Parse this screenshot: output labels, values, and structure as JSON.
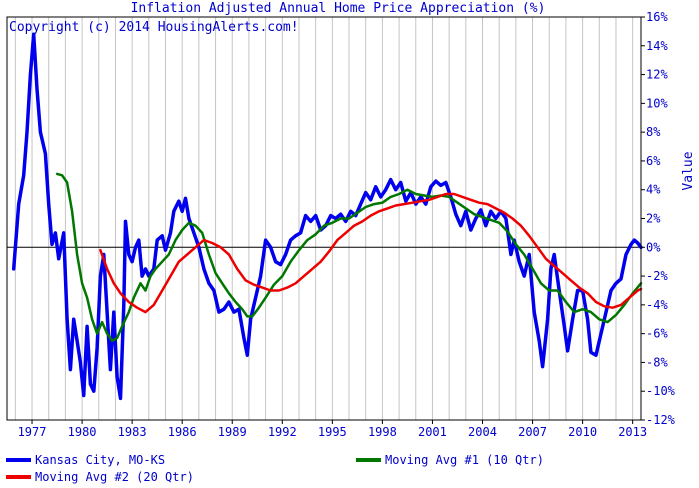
{
  "chart_data": {
    "type": "line",
    "title": "Inflation Adjusted Annual Home Price Appreciation (%)",
    "annotation": "Copyright (c) 2014 HousingAlerts.com!",
    "ylabel": "Value",
    "xlim": [
      1975.5,
      2013.5
    ],
    "ylim": [
      -12,
      16
    ],
    "x_ticks": [
      1977,
      1980,
      1983,
      1986,
      1989,
      1992,
      1995,
      1998,
      2001,
      2004,
      2007,
      2010,
      2013
    ],
    "y_ticks": [
      16,
      14,
      12,
      10,
      8,
      6,
      4,
      2,
      0,
      -2,
      -4,
      -6,
      -8,
      -10,
      -12
    ],
    "y_tick_labels": [
      "16%",
      "14%",
      "12%",
      "10%",
      "8%",
      "6%",
      "4%",
      "2%",
      "0%",
      "-2%",
      "-4%",
      "-6%",
      "-8%",
      "-10%",
      "-12%"
    ],
    "grid": "vertical",
    "legend_position": "bottom",
    "series": [
      {
        "name": "Kansas City, MO-KS",
        "color": "#0000ee",
        "points": [
          [
            1975.9,
            -1.5
          ],
          [
            1976.2,
            3.0
          ],
          [
            1976.5,
            5.0
          ],
          [
            1976.7,
            8.0
          ],
          [
            1976.9,
            12.0
          ],
          [
            1977.1,
            14.8
          ],
          [
            1977.3,
            11.0
          ],
          [
            1977.5,
            8.0
          ],
          [
            1977.8,
            6.5
          ],
          [
            1978.0,
            3.0
          ],
          [
            1978.2,
            0.2
          ],
          [
            1978.4,
            1.0
          ],
          [
            1978.6,
            -0.8
          ],
          [
            1978.9,
            1.0
          ],
          [
            1979.1,
            -5.0
          ],
          [
            1979.3,
            -8.5
          ],
          [
            1979.5,
            -5.0
          ],
          [
            1979.7,
            -6.5
          ],
          [
            1979.9,
            -8.0
          ],
          [
            1980.1,
            -10.3
          ],
          [
            1980.3,
            -5.5
          ],
          [
            1980.5,
            -9.5
          ],
          [
            1980.7,
            -10.0
          ],
          [
            1980.9,
            -7.0
          ],
          [
            1981.1,
            -2.0
          ],
          [
            1981.3,
            -0.5
          ],
          [
            1981.5,
            -4.5
          ],
          [
            1981.7,
            -8.5
          ],
          [
            1981.9,
            -4.5
          ],
          [
            1982.1,
            -9.0
          ],
          [
            1982.3,
            -10.5
          ],
          [
            1982.5,
            -4.0
          ],
          [
            1982.6,
            1.8
          ],
          [
            1982.8,
            -0.5
          ],
          [
            1983.0,
            -1.0
          ],
          [
            1983.2,
            0.0
          ],
          [
            1983.4,
            0.5
          ],
          [
            1983.6,
            -2.0
          ],
          [
            1983.8,
            -1.5
          ],
          [
            1984.0,
            -2.0
          ],
          [
            1984.3,
            -1.5
          ],
          [
            1984.5,
            0.5
          ],
          [
            1984.8,
            0.8
          ],
          [
            1985.0,
            -0.2
          ],
          [
            1985.3,
            1.0
          ],
          [
            1985.5,
            2.5
          ],
          [
            1985.8,
            3.2
          ],
          [
            1986.0,
            2.5
          ],
          [
            1986.2,
            3.4
          ],
          [
            1986.4,
            2.0
          ],
          [
            1986.7,
            1.0
          ],
          [
            1987.0,
            0.0
          ],
          [
            1987.3,
            -1.5
          ],
          [
            1987.6,
            -2.5
          ],
          [
            1987.9,
            -3.0
          ],
          [
            1988.2,
            -4.5
          ],
          [
            1988.5,
            -4.3
          ],
          [
            1988.8,
            -3.8
          ],
          [
            1989.1,
            -4.5
          ],
          [
            1989.4,
            -4.3
          ],
          [
            1989.7,
            -6.3
          ],
          [
            1989.9,
            -7.5
          ],
          [
            1990.1,
            -5.0
          ],
          [
            1990.4,
            -3.5
          ],
          [
            1990.7,
            -2.0
          ],
          [
            1991.0,
            0.5
          ],
          [
            1991.3,
            0.0
          ],
          [
            1991.6,
            -1.0
          ],
          [
            1991.9,
            -1.2
          ],
          [
            1992.2,
            -0.5
          ],
          [
            1992.5,
            0.5
          ],
          [
            1992.8,
            0.8
          ],
          [
            1993.1,
            1.0
          ],
          [
            1993.4,
            2.2
          ],
          [
            1993.7,
            1.8
          ],
          [
            1994.0,
            2.2
          ],
          [
            1994.3,
            1.2
          ],
          [
            1994.6,
            1.5
          ],
          [
            1994.9,
            2.2
          ],
          [
            1995.2,
            2.0
          ],
          [
            1995.5,
            2.3
          ],
          [
            1995.8,
            1.8
          ],
          [
            1996.1,
            2.5
          ],
          [
            1996.4,
            2.2
          ],
          [
            1996.7,
            3.0
          ],
          [
            1997.0,
            3.8
          ],
          [
            1997.3,
            3.3
          ],
          [
            1997.6,
            4.2
          ],
          [
            1997.9,
            3.5
          ],
          [
            1998.2,
            4.0
          ],
          [
            1998.5,
            4.7
          ],
          [
            1998.8,
            4.0
          ],
          [
            1999.1,
            4.5
          ],
          [
            1999.4,
            3.2
          ],
          [
            1999.7,
            3.8
          ],
          [
            2000.0,
            3.0
          ],
          [
            2000.3,
            3.5
          ],
          [
            2000.6,
            3.0
          ],
          [
            2000.9,
            4.2
          ],
          [
            2001.2,
            4.6
          ],
          [
            2001.5,
            4.3
          ],
          [
            2001.8,
            4.5
          ],
          [
            2002.1,
            3.5
          ],
          [
            2002.4,
            2.3
          ],
          [
            2002.7,
            1.5
          ],
          [
            2003.0,
            2.5
          ],
          [
            2003.3,
            1.2
          ],
          [
            2003.6,
            2.0
          ],
          [
            2003.9,
            2.6
          ],
          [
            2004.2,
            1.5
          ],
          [
            2004.5,
            2.5
          ],
          [
            2004.8,
            2.0
          ],
          [
            2005.1,
            2.5
          ],
          [
            2005.4,
            2.0
          ],
          [
            2005.7,
            -0.5
          ],
          [
            2005.9,
            0.5
          ],
          [
            2006.2,
            -1.0
          ],
          [
            2006.5,
            -2.0
          ],
          [
            2006.8,
            -0.5
          ],
          [
            2007.1,
            -4.5
          ],
          [
            2007.4,
            -6.5
          ],
          [
            2007.6,
            -8.3
          ],
          [
            2007.9,
            -5.0
          ],
          [
            2008.1,
            -1.5
          ],
          [
            2008.3,
            -0.5
          ],
          [
            2008.6,
            -3.0
          ],
          [
            2008.9,
            -5.5
          ],
          [
            2009.1,
            -7.2
          ],
          [
            2009.4,
            -5.0
          ],
          [
            2009.7,
            -3.0
          ],
          [
            2010.0,
            -3.0
          ],
          [
            2010.3,
            -5.0
          ],
          [
            2010.5,
            -7.3
          ],
          [
            2010.8,
            -7.5
          ],
          [
            2011.1,
            -6.0
          ],
          [
            2011.4,
            -4.5
          ],
          [
            2011.7,
            -3.0
          ],
          [
            2012.0,
            -2.5
          ],
          [
            2012.3,
            -2.2
          ],
          [
            2012.6,
            -0.5
          ],
          [
            2012.9,
            0.2
          ],
          [
            2013.1,
            0.5
          ],
          [
            2013.3,
            0.3
          ],
          [
            2013.5,
            0.0
          ]
        ]
      },
      {
        "name": "Moving Avg #1 (10 Qtr)",
        "color": "#007700",
        "points": [
          [
            1978.5,
            5.1
          ],
          [
            1978.8,
            5.0
          ],
          [
            1979.1,
            4.5
          ],
          [
            1979.4,
            2.5
          ],
          [
            1979.7,
            -0.5
          ],
          [
            1980.0,
            -2.5
          ],
          [
            1980.3,
            -3.5
          ],
          [
            1980.6,
            -5.0
          ],
          [
            1980.9,
            -6.0
          ],
          [
            1981.2,
            -5.2
          ],
          [
            1981.5,
            -6.0
          ],
          [
            1981.8,
            -6.5
          ],
          [
            1982.1,
            -6.3
          ],
          [
            1982.4,
            -5.5
          ],
          [
            1982.8,
            -4.5
          ],
          [
            1983.1,
            -3.5
          ],
          [
            1983.5,
            -2.5
          ],
          [
            1983.8,
            -3.0
          ],
          [
            1984.1,
            -2.0
          ],
          [
            1984.4,
            -1.5
          ],
          [
            1984.8,
            -1.0
          ],
          [
            1985.2,
            -0.5
          ],
          [
            1985.6,
            0.5
          ],
          [
            1986.0,
            1.2
          ],
          [
            1986.4,
            1.7
          ],
          [
            1986.8,
            1.5
          ],
          [
            1987.2,
            1.0
          ],
          [
            1987.6,
            -0.5
          ],
          [
            1988.0,
            -1.8
          ],
          [
            1988.4,
            -2.5
          ],
          [
            1988.8,
            -3.2
          ],
          [
            1989.2,
            -3.8
          ],
          [
            1989.6,
            -4.3
          ],
          [
            1989.9,
            -4.8
          ],
          [
            1990.2,
            -4.8
          ],
          [
            1990.6,
            -4.2
          ],
          [
            1991.0,
            -3.5
          ],
          [
            1991.5,
            -2.6
          ],
          [
            1992.0,
            -2.0
          ],
          [
            1992.5,
            -1.0
          ],
          [
            1993.0,
            -0.2
          ],
          [
            1993.5,
            0.5
          ],
          [
            1994.0,
            0.9
          ],
          [
            1994.5,
            1.5
          ],
          [
            1995.0,
            1.7
          ],
          [
            1995.5,
            2.0
          ],
          [
            1996.0,
            2.0
          ],
          [
            1996.5,
            2.4
          ],
          [
            1997.0,
            2.8
          ],
          [
            1997.5,
            3.0
          ],
          [
            1998.0,
            3.1
          ],
          [
            1998.5,
            3.5
          ],
          [
            1999.0,
            3.7
          ],
          [
            1999.5,
            4.0
          ],
          [
            2000.0,
            3.7
          ],
          [
            2000.5,
            3.6
          ],
          [
            2001.0,
            3.5
          ],
          [
            2001.5,
            3.6
          ],
          [
            2002.0,
            3.5
          ],
          [
            2002.5,
            3.1
          ],
          [
            2003.0,
            2.7
          ],
          [
            2003.5,
            2.3
          ],
          [
            2004.0,
            2.1
          ],
          [
            2004.5,
            1.9
          ],
          [
            2005.0,
            1.7
          ],
          [
            2005.5,
            1.1
          ],
          [
            2006.0,
            0.2
          ],
          [
            2006.5,
            -0.5
          ],
          [
            2007.0,
            -1.5
          ],
          [
            2007.5,
            -2.5
          ],
          [
            2008.0,
            -3.0
          ],
          [
            2008.5,
            -3.0
          ],
          [
            2009.0,
            -3.8
          ],
          [
            2009.5,
            -4.5
          ],
          [
            2010.0,
            -4.3
          ],
          [
            2010.5,
            -4.5
          ],
          [
            2011.0,
            -5.0
          ],
          [
            2011.5,
            -5.2
          ],
          [
            2012.0,
            -4.7
          ],
          [
            2012.5,
            -4.0
          ],
          [
            2013.0,
            -3.2
          ],
          [
            2013.5,
            -2.5
          ]
        ]
      },
      {
        "name": "Moving Avg #2 (20 Qtr)",
        "color": "#ee0000",
        "points": [
          [
            1981.1,
            -0.2
          ],
          [
            1981.5,
            -1.5
          ],
          [
            1981.9,
            -2.5
          ],
          [
            1982.3,
            -3.2
          ],
          [
            1982.8,
            -3.8
          ],
          [
            1983.3,
            -4.2
          ],
          [
            1983.8,
            -4.5
          ],
          [
            1984.3,
            -4.0
          ],
          [
            1984.8,
            -3.0
          ],
          [
            1985.3,
            -2.0
          ],
          [
            1985.8,
            -1.0
          ],
          [
            1986.3,
            -0.5
          ],
          [
            1986.8,
            0.0
          ],
          [
            1987.3,
            0.5
          ],
          [
            1987.8,
            0.3
          ],
          [
            1988.3,
            0.0
          ],
          [
            1988.8,
            -0.5
          ],
          [
            1989.3,
            -1.5
          ],
          [
            1989.8,
            -2.3
          ],
          [
            1990.3,
            -2.6
          ],
          [
            1990.8,
            -2.8
          ],
          [
            1991.3,
            -3.0
          ],
          [
            1991.8,
            -3.0
          ],
          [
            1992.3,
            -2.8
          ],
          [
            1992.8,
            -2.5
          ],
          [
            1993.3,
            -2.0
          ],
          [
            1993.8,
            -1.5
          ],
          [
            1994.3,
            -1.0
          ],
          [
            1994.8,
            -0.3
          ],
          [
            1995.3,
            0.5
          ],
          [
            1995.8,
            1.0
          ],
          [
            1996.3,
            1.5
          ],
          [
            1996.8,
            1.8
          ],
          [
            1997.3,
            2.2
          ],
          [
            1997.8,
            2.5
          ],
          [
            1998.3,
            2.7
          ],
          [
            1998.8,
            2.9
          ],
          [
            1999.3,
            3.0
          ],
          [
            1999.8,
            3.1
          ],
          [
            2000.3,
            3.2
          ],
          [
            2000.8,
            3.3
          ],
          [
            2001.3,
            3.5
          ],
          [
            2001.8,
            3.7
          ],
          [
            2002.3,
            3.7
          ],
          [
            2002.8,
            3.5
          ],
          [
            2003.3,
            3.3
          ],
          [
            2003.8,
            3.1
          ],
          [
            2004.3,
            3.0
          ],
          [
            2004.8,
            2.7
          ],
          [
            2005.3,
            2.4
          ],
          [
            2005.8,
            2.0
          ],
          [
            2006.3,
            1.5
          ],
          [
            2006.8,
            0.8
          ],
          [
            2007.3,
            0.0
          ],
          [
            2007.8,
            -0.8
          ],
          [
            2008.3,
            -1.3
          ],
          [
            2008.8,
            -1.8
          ],
          [
            2009.3,
            -2.3
          ],
          [
            2009.8,
            -2.8
          ],
          [
            2010.3,
            -3.2
          ],
          [
            2010.8,
            -3.8
          ],
          [
            2011.3,
            -4.1
          ],
          [
            2011.8,
            -4.2
          ],
          [
            2012.3,
            -4.0
          ],
          [
            2012.8,
            -3.5
          ],
          [
            2013.3,
            -3.0
          ],
          [
            2013.5,
            -2.9
          ]
        ]
      }
    ]
  }
}
